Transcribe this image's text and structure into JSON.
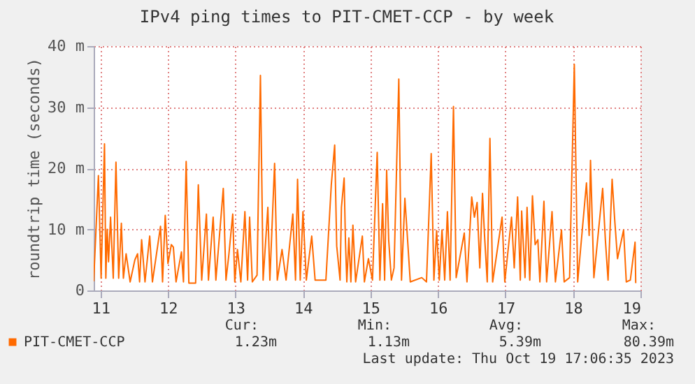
{
  "chart_data": {
    "type": "line",
    "title": "IPv4 ping times to PIT-CMET-CCP - by week",
    "ylabel": "roundtrip time (seconds)",
    "xlim": [
      10.9,
      19.0
    ],
    "xticks": [
      11,
      12,
      13,
      14,
      15,
      16,
      17,
      18,
      19
    ],
    "ylim": [
      0,
      40
    ],
    "yticks": [
      0,
      {
        "value": 10,
        "label": "10 m"
      },
      {
        "value": 20,
        "label": "20 m"
      },
      {
        "value": 30,
        "label": "30 m"
      },
      {
        "value": 40,
        "label": "40 m"
      }
    ],
    "grid": true,
    "legend": "bottom left",
    "marker": "none",
    "line_style": "solid",
    "annotations": [
      "Cur:",
      "Min:",
      "Avg:",
      "Max:",
      "1.23m",
      "1.13m",
      "5.39m",
      "80.39m",
      "Last update: Thu Oct 19 17:06:35 2023"
    ],
    "series": [
      {
        "name": "PIT-CMET-CCP",
        "color": "#ff6a00",
        "x": [
          10.9,
          10.97,
          11.01,
          11.06,
          11.08,
          11.1,
          11.12,
          11.15,
          11.19,
          11.23,
          11.27,
          11.31,
          11.34,
          11.38,
          11.44,
          11.51,
          11.55,
          11.58,
          11.61,
          11.66,
          11.73,
          11.77,
          11.89,
          11.92,
          11.96,
          12.0,
          12.05,
          12.08,
          12.12,
          12.2,
          12.23,
          12.27,
          12.31,
          12.41,
          12.45,
          12.5,
          12.57,
          12.6,
          12.67,
          12.71,
          12.82,
          12.86,
          12.9,
          12.96,
          12.99,
          13.03,
          13.08,
          13.14,
          13.18,
          13.21,
          13.25,
          13.32,
          13.37,
          13.41,
          13.48,
          13.51,
          13.58,
          13.62,
          13.69,
          13.75,
          13.85,
          13.89,
          13.92,
          13.96,
          14.0,
          14.05,
          14.13,
          14.18,
          14.34,
          14.42,
          14.47,
          14.5,
          14.55,
          14.57,
          14.61,
          14.63,
          14.65,
          14.68,
          14.71,
          14.74,
          14.78,
          14.88,
          14.91,
          14.97,
          15.03,
          15.1,
          15.14,
          15.18,
          15.21,
          15.24,
          15.27,
          15.31,
          15.35,
          15.42,
          15.46,
          15.51,
          15.55,
          15.59,
          15.76,
          15.83,
          15.9,
          15.94,
          15.98,
          16.02,
          16.06,
          16.1,
          16.14,
          16.18,
          16.23,
          16.27,
          16.39,
          16.43,
          16.5,
          16.54,
          16.58,
          16.62,
          16.66,
          16.69,
          16.73,
          16.77,
          16.81,
          16.95,
          16.99,
          17.09,
          17.13,
          17.18,
          17.22,
          17.24,
          17.29,
          17.32,
          17.36,
          17.4,
          17.44,
          17.48,
          17.51,
          17.57,
          17.61,
          17.69,
          17.74,
          17.83,
          17.87,
          17.95,
          18.02,
          18.07,
          18.2,
          18.24,
          18.26,
          18.31,
          18.44,
          18.48,
          18.52,
          18.58,
          18.62,
          18.66,
          18.75,
          18.79,
          18.85,
          18.92,
          18.93
        ],
        "values": [
          1.5,
          18.8,
          2,
          24,
          2,
          10,
          4.7,
          12,
          2,
          21,
          2,
          11,
          2,
          6,
          1.4,
          5,
          6,
          1.4,
          8.3,
          1.4,
          8.9,
          1.4,
          10.5,
          1.4,
          12.3,
          4.4,
          7.5,
          7.1,
          1.4,
          6.3,
          1.4,
          21.1,
          1.2,
          1.2,
          17.3,
          1.7,
          12.5,
          1.7,
          12,
          1.7,
          16.7,
          1.7,
          5.6,
          12.5,
          1.4,
          6.7,
          1.4,
          12.9,
          1.7,
          12,
          1.4,
          2.5,
          35.2,
          1.7,
          13.6,
          1.7,
          20.8,
          1.7,
          6.7,
          1.7,
          12.5,
          1.7,
          18.2,
          1.7,
          12.9,
          1.7,
          8.9,
          1.7,
          1.7,
          17.3,
          23.8,
          7.3,
          1.7,
          13.6,
          18.4,
          7.9,
          1.4,
          8.6,
          1.4,
          10.7,
          1.4,
          8.9,
          1.4,
          5.2,
          1.7,
          22.6,
          1.7,
          14.2,
          1.7,
          19.7,
          8.3,
          1.7,
          3.7,
          34.6,
          1.7,
          15.1,
          8.3,
          1.4,
          2.1,
          1.4,
          22.4,
          1.7,
          9.8,
          1.7,
          9.9,
          1.7,
          12.9,
          1.7,
          30.1,
          2.1,
          9.4,
          1.4,
          15.3,
          12,
          14.4,
          3.7,
          15.9,
          9,
          1.4,
          24.9,
          1.4,
          12,
          1.4,
          12,
          3.7,
          15.3,
          1.7,
          13,
          2.1,
          13.6,
          1.7,
          15.5,
          7.5,
          8.3,
          1.4,
          14.6,
          1.4,
          12.9,
          1.4,
          9.9,
          1.4,
          2.1,
          37,
          1.4,
          17.6,
          9,
          21.3,
          2.1,
          16.7,
          8.3,
          1.7,
          18.2,
          11.3,
          5.2,
          9.9,
          1.4,
          1.7,
          7.9,
          1.2
        ]
      }
    ]
  }
}
